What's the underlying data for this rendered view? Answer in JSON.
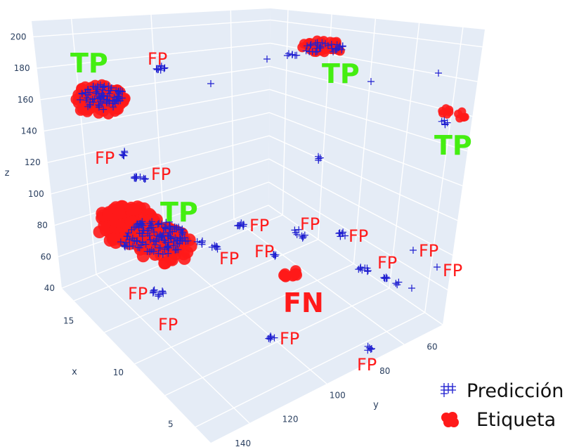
{
  "colors": {
    "pane": "#e5ecf6",
    "grid": "#ffffff",
    "prediction": "#1f1fd0",
    "label": "#ff1a1a",
    "tp": "#44ee11",
    "fp": "#ff1a1a",
    "fn": "#ff1a1a"
  },
  "chart_data": {
    "type": "scatter",
    "dimensions": "3d",
    "axes": {
      "x": {
        "title": "x",
        "ticks": [
          "5",
          "10",
          "15"
        ]
      },
      "y": {
        "title": "y",
        "ticks": [
          "60",
          "80",
          "100",
          "120",
          "140"
        ]
      },
      "z": {
        "title": "z",
        "ticks": [
          "40",
          "60",
          "80",
          "100",
          "120",
          "140",
          "160",
          "180",
          "200"
        ]
      }
    },
    "grid": true,
    "legend_position": "bottom-right",
    "legend": [
      {
        "name": "Predicción",
        "marker": "cross",
        "color": "#1f1fd0"
      },
      {
        "name": "Etiqueta",
        "marker": "circle",
        "color": "#ff1a1a"
      }
    ],
    "annotations": [
      {
        "text": "TP",
        "kind": "tp"
      },
      {
        "text": "FP",
        "kind": "fp"
      },
      {
        "text": "TP",
        "kind": "tp"
      },
      {
        "text": "TP",
        "kind": "tp"
      },
      {
        "text": "FP",
        "kind": "fp"
      },
      {
        "text": "FP",
        "kind": "fp"
      },
      {
        "text": "TP",
        "kind": "tp"
      },
      {
        "text": "FP",
        "kind": "fp"
      },
      {
        "text": "FP",
        "kind": "fp"
      },
      {
        "text": "FP",
        "kind": "fp"
      },
      {
        "text": "FP",
        "kind": "fp"
      },
      {
        "text": "FP",
        "kind": "fp"
      },
      {
        "text": "FP",
        "kind": "fp"
      },
      {
        "text": "FP",
        "kind": "fp"
      },
      {
        "text": "FP",
        "kind": "fp"
      },
      {
        "text": "FN",
        "kind": "fn"
      },
      {
        "text": "FP",
        "kind": "fp"
      },
      {
        "text": "FP",
        "kind": "fp"
      },
      {
        "text": "FP",
        "kind": "fp"
      },
      {
        "text": "FP",
        "kind": "fp"
      }
    ]
  }
}
